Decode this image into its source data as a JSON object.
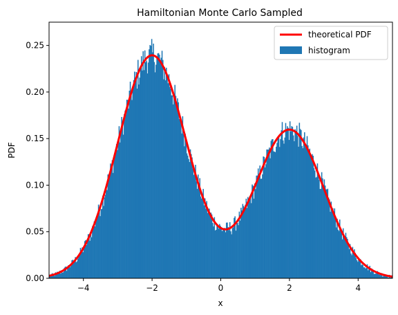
{
  "chart_data": {
    "type": "bar",
    "title": "Hamiltonian Monte Carlo Sampled",
    "xlabel": "x",
    "ylabel": "PDF",
    "xlim": [
      -5,
      5
    ],
    "ylim": [
      0,
      0.275
    ],
    "xticks": [
      -4,
      -2,
      0,
      2,
      4
    ],
    "xtick_labels": [
      "−4",
      "−2",
      "0",
      "2",
      "4"
    ],
    "yticks": [
      0.0,
      0.05,
      0.1,
      0.15,
      0.2,
      0.25
    ],
    "ytick_labels": [
      "0.00",
      "0.05",
      "0.10",
      "0.15",
      "0.20",
      "0.25"
    ],
    "grid": false,
    "legend_position": "top-right",
    "series": [
      {
        "name": "theoretical PDF",
        "kind": "line",
        "color": "#ff0000",
        "mixture": [
          {
            "weight": 0.6,
            "mean": -2,
            "sd": 1
          },
          {
            "weight": 0.4,
            "mean": 2,
            "sd": 1
          }
        ]
      },
      {
        "name": "histogram",
        "kind": "histogram",
        "color": "#1f77b4",
        "bin_width": 0.025,
        "range": [
          -5,
          5
        ]
      }
    ]
  }
}
